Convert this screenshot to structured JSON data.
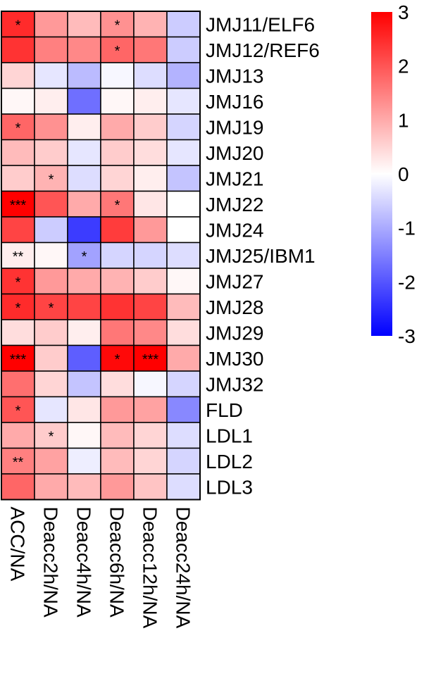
{
  "chart_data": {
    "type": "heatmap",
    "columns": [
      "ACC/NA",
      "Deacc2h/NA",
      "Deacc4h/NA",
      "Deacc6h/NA",
      "Deacc12h/NA",
      "Deacc24h/NA"
    ],
    "rows": [
      "JMJ11/ELF6",
      "JMJ12/REF6",
      "JMJ13",
      "JMJ16",
      "JMJ19",
      "JMJ20",
      "JMJ21",
      "JMJ22",
      "JMJ24",
      "JMJ25/IBM1",
      "JMJ27",
      "JMJ28",
      "JMJ29",
      "JMJ30",
      "JMJ32",
      "FLD",
      "LDL1",
      "LDL2",
      "LDL3"
    ],
    "values": [
      [
        2.5,
        1.2,
        0.8,
        1.3,
        0.9,
        -0.6
      ],
      [
        2.4,
        1.5,
        1.4,
        1.8,
        1.6,
        -0.6
      ],
      [
        0.5,
        -0.3,
        -0.8,
        -0.1,
        -0.4,
        -0.9
      ],
      [
        0.1,
        0.2,
        -1.7,
        0.1,
        0.2,
        -0.3
      ],
      [
        1.8,
        1.3,
        0.2,
        1.0,
        0.6,
        -0.5
      ],
      [
        0.8,
        0.6,
        -0.3,
        0.6,
        0.4,
        -0.3
      ],
      [
        0.6,
        0.9,
        -0.4,
        0.5,
        0.2,
        -0.7
      ],
      [
        3.0,
        2.0,
        1.0,
        1.6,
        0.3,
        0.0
      ],
      [
        2.2,
        -0.6,
        -2.3,
        2.3,
        1.2,
        0.0
      ],
      [
        0.2,
        0.1,
        -1.1,
        -0.5,
        -0.5,
        -0.4
      ],
      [
        2.4,
        1.2,
        1.0,
        0.9,
        0.6,
        0.1
      ],
      [
        2.5,
        2.2,
        2.2,
        2.4,
        2.2,
        0.8
      ],
      [
        0.4,
        0.6,
        0.2,
        1.6,
        1.4,
        0.4
      ],
      [
        3.0,
        0.6,
        -1.9,
        2.9,
        3.0,
        1.0
      ],
      [
        1.7,
        0.5,
        -0.7,
        0.4,
        -0.1,
        -0.5
      ],
      [
        2.0,
        -0.3,
        0.3,
        1.2,
        1.1,
        -1.4
      ],
      [
        1.0,
        0.6,
        0.1,
        0.8,
        0.5,
        -0.4
      ],
      [
        1.5,
        1.1,
        -0.2,
        0.8,
        0.5,
        -0.5
      ],
      [
        1.8,
        1.0,
        0.8,
        1.2,
        0.7,
        -0.4
      ]
    ],
    "significance": [
      [
        "*",
        "",
        "",
        "*",
        "",
        ""
      ],
      [
        "",
        "",
        "",
        "*",
        "",
        ""
      ],
      [
        "",
        "",
        "",
        "",
        "",
        ""
      ],
      [
        "",
        "",
        "",
        "",
        "",
        ""
      ],
      [
        "*",
        "",
        "",
        "",
        "",
        ""
      ],
      [
        "",
        "",
        "",
        "",
        "",
        ""
      ],
      [
        "",
        "*",
        "",
        "",
        "",
        ""
      ],
      [
        "***",
        "",
        "",
        "*",
        "",
        ""
      ],
      [
        "",
        "",
        "",
        "",
        "",
        ""
      ],
      [
        "**",
        "",
        "*",
        "",
        "",
        ""
      ],
      [
        "*",
        "",
        "",
        "",
        "",
        ""
      ],
      [
        "*",
        "*",
        "",
        "",
        "",
        ""
      ],
      [
        "",
        "",
        "",
        "",
        "",
        ""
      ],
      [
        "***",
        "",
        "",
        "*",
        "***",
        ""
      ],
      [
        "",
        "",
        "",
        "",
        "",
        ""
      ],
      [
        "*",
        "",
        "",
        "",
        "",
        ""
      ],
      [
        "",
        "*",
        "",
        "",
        "",
        ""
      ],
      [
        "**",
        "",
        "",
        "",
        "",
        ""
      ],
      [
        "",
        "",
        "",
        "",
        "",
        ""
      ]
    ],
    "colorbar": {
      "min": -3,
      "max": 3,
      "ticks": [
        "3",
        "2",
        "1",
        "0",
        "-1",
        "-2",
        "-3"
      ],
      "low_color": "#0000ff",
      "mid_color": "#ffffff",
      "high_color": "#ff0000"
    },
    "legend_position": "top-right"
  }
}
